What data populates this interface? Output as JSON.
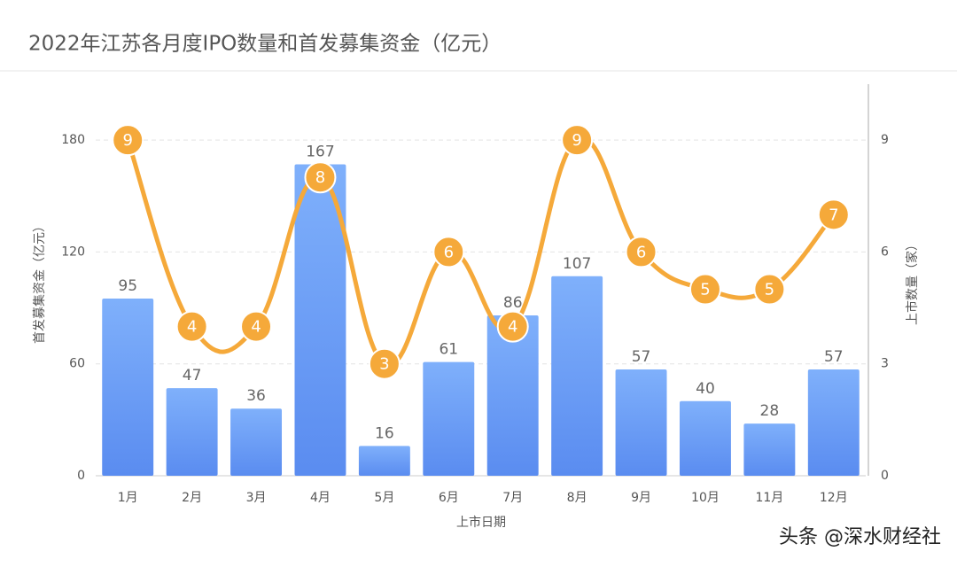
{
  "chart_data": {
    "type": "bar-line",
    "title": "2022年江苏各月度IPO数量和首发募集资金（亿元）",
    "x_label": "上市日期",
    "y_label": "首发募集资金（亿元）",
    "y2_label": "上市数量（家）",
    "footer": "头条 @深水财经社",
    "categories": [
      "1月",
      "2月",
      "3月",
      "4月",
      "5月",
      "6月",
      "7月",
      "8月",
      "9月",
      "10月",
      "11月",
      "12月"
    ],
    "series": [
      {
        "type": "bar",
        "color": "#6b9cf5",
        "axis": "y",
        "values": [
          95,
          47,
          36,
          167,
          16,
          61,
          86,
          107,
          57,
          40,
          28,
          57
        ]
      },
      {
        "type": "line",
        "color": "#f5a93a",
        "axis": "y2",
        "values": [
          9,
          4,
          4,
          8,
          3,
          6,
          4,
          9,
          6,
          5,
          5,
          7
        ]
      }
    ],
    "ylim": [
      0,
      210
    ],
    "yticks": [
      0,
      60,
      120,
      180
    ],
    "y2lim": [
      0,
      10.5
    ],
    "y2ticks": [
      0,
      3,
      6,
      9
    ],
    "grid": true
  }
}
